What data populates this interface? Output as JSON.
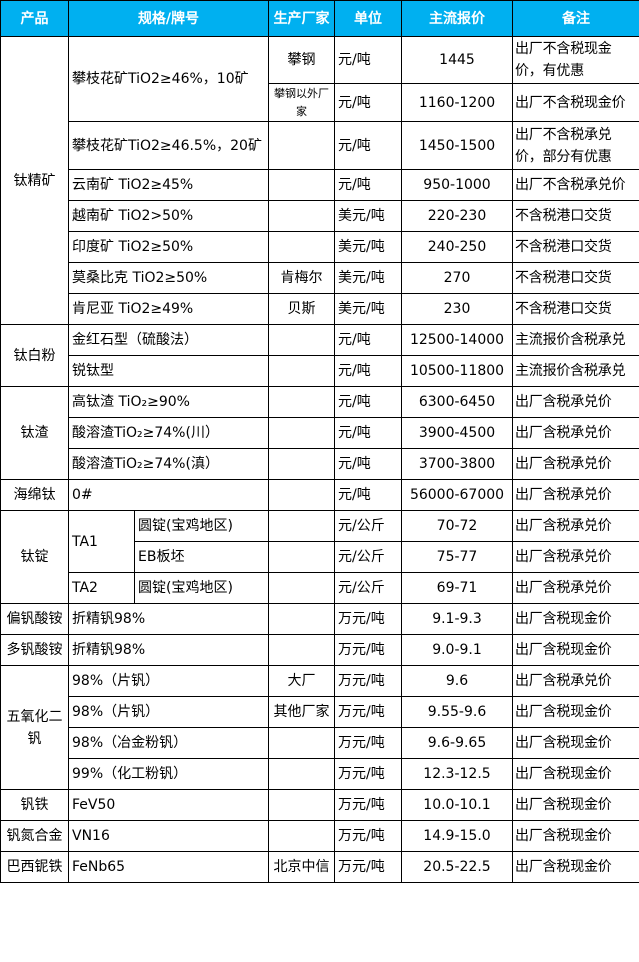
{
  "header": [
    "产品",
    "规格/牌号",
    "生产厂家",
    "单位",
    "主流报价",
    "备注"
  ],
  "header_color": "#00b0f0",
  "rows": [
    {
      "product": "钛精矿",
      "spec": "攀枝花矿TiO2≥46%，10矿",
      "mfr": "攀钢",
      "unit": "元/吨",
      "price": "1445",
      "note": "出厂不含税现金价，有优惠"
    },
    {
      "mfr": "攀钢以外厂家",
      "unit": "元/吨",
      "price": "1160-1200",
      "note": "出厂不含税现金价"
    },
    {
      "spec": "攀枝花矿TiO2≥46.5%，20矿",
      "mfr": "",
      "unit": "元/吨",
      "price": "1450-1500",
      "note": "出厂不含税承兑价，部分有优惠"
    },
    {
      "spec": "云南矿 TiO2≥45%",
      "mfr": "",
      "unit": "元/吨",
      "price": "950-1000",
      "note": "出厂不含税承兑价"
    },
    {
      "spec": "越南矿 TiO2>50%",
      "mfr": "",
      "unit": "美元/吨",
      "price": "220-230",
      "note": "不含税港口交货"
    },
    {
      "spec": "印度矿 TiO2≥50%",
      "mfr": "",
      "unit": "美元/吨",
      "price": "240-250",
      "note": "不含税港口交货"
    },
    {
      "spec": "莫桑比克 TiO2≥50%",
      "mfr": "肯梅尔",
      "unit": "美元/吨",
      "price": "270",
      "note": "不含税港口交货"
    },
    {
      "spec": "肯尼亚 TiO2≥49%",
      "mfr": "贝斯",
      "unit": "美元/吨",
      "price": "230",
      "note": "不含税港口交货"
    },
    {
      "product": "钛白粉",
      "spec": "金红石型（硫酸法）",
      "mfr": "",
      "unit": "元/吨",
      "price": "12500-14000",
      "note": "主流报价含税承兑"
    },
    {
      "spec": "锐钛型",
      "mfr": "",
      "unit": "元/吨",
      "price": "10500-11800",
      "note": "主流报价含税承兑"
    },
    {
      "product": "钛渣",
      "spec": "高钛渣 TiO₂≥90%",
      "mfr": "",
      "unit": "元/吨",
      "price": "6300-6450",
      "note": "出厂含税承兑价"
    },
    {
      "spec": "酸溶渣TiO₂≥74%(川）",
      "mfr": "",
      "unit": "元/吨",
      "price": "3900-4500",
      "note": "出厂含税承兑价"
    },
    {
      "spec": "酸溶渣TiO₂≥74%(滇）",
      "mfr": "",
      "unit": "元/吨",
      "price": "3700-3800",
      "note": "出厂含税承兑价"
    },
    {
      "product": "海绵钛",
      "spec": "0#",
      "mfr": "",
      "unit": "元/吨",
      "price": "56000-67000",
      "note": "出厂含税承兑价"
    },
    {
      "product": "钛锭",
      "grade": "TA1",
      "sub": "圆锭(宝鸡地区)",
      "mfr": "",
      "unit": "元/公斤",
      "price": "70-72",
      "note": "出厂含税承兑价"
    },
    {
      "sub": "EB板坯",
      "mfr": "",
      "unit": "元/公斤",
      "price": "75-77",
      "note": "出厂含税承兑价"
    },
    {
      "grade": "TA2",
      "sub": "圆锭(宝鸡地区)",
      "mfr": "",
      "unit": "元/公斤",
      "price": "69-71",
      "note": "出厂含税承兑价"
    },
    {
      "product": "偏钒酸铵",
      "spec": "折精钒98%",
      "mfr": "",
      "unit": "万元/吨",
      "price": "9.1-9.3",
      "note": "出厂含税现金价"
    },
    {
      "product": "多钒酸铵",
      "spec": "折精钒98%",
      "mfr": "",
      "unit": "万元/吨",
      "price": "9.0-9.1",
      "note": "出厂含税现金价"
    },
    {
      "product": "五氧化二钒",
      "spec": "98%（片钒）",
      "mfr": "大厂",
      "unit": "万元/吨",
      "price": "9.6",
      "note": "出厂含税承兑价"
    },
    {
      "spec": "98%（片钒）",
      "mfr": "其他厂家",
      "unit": "万元/吨",
      "price": "9.55-9.6",
      "note": "出厂含税现金价"
    },
    {
      "spec": "98%（冶金粉钒）",
      "mfr": "",
      "unit": "万元/吨",
      "price": "9.6-9.65",
      "note": "出厂含税现金价"
    },
    {
      "spec": "99%（化工粉钒）",
      "mfr": "",
      "unit": "万元/吨",
      "price": "12.3-12.5",
      "note": "出厂含税现金价"
    },
    {
      "product": "钒铁",
      "spec": "FeV50",
      "mfr": "",
      "unit": "万元/吨",
      "price": "10.0-10.1",
      "note": "出厂含税现金价"
    },
    {
      "product": "钒氮合金",
      "spec": "VN16",
      "mfr": "",
      "unit": "万元/吨",
      "price": "14.9-15.0",
      "note": "出厂含税现金价"
    },
    {
      "product": "巴西铌铁",
      "spec": "FeNb65",
      "mfr": "北京中信",
      "unit": "万元/吨",
      "price": "20.5-22.5",
      "note": "出厂含税现金价"
    }
  ]
}
